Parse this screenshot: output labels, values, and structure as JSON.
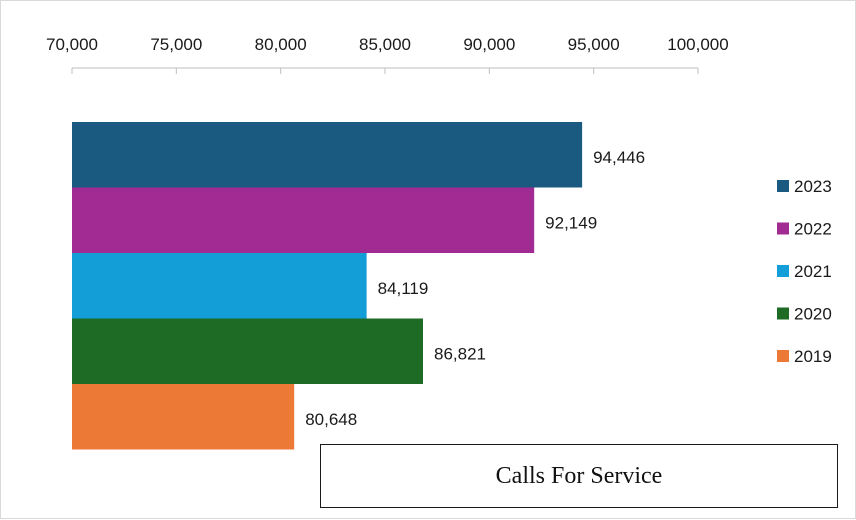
{
  "chart_data": {
    "type": "bar",
    "orientation": "horizontal",
    "title": "Calls For Service",
    "xlim": [
      70000,
      100000
    ],
    "x_ticks": [
      70000,
      75000,
      80000,
      85000,
      90000,
      95000,
      100000
    ],
    "x_tick_labels": [
      "70,000",
      "75,000",
      "80,000",
      "85,000",
      "90,000",
      "95,000",
      "100,000"
    ],
    "x_axis_position": "top",
    "grid": false,
    "legend_position": "right",
    "categories": [
      "2023",
      "2022",
      "2021",
      "2020",
      "2019"
    ],
    "values": [
      94446,
      92149,
      84119,
      86821,
      80648
    ],
    "value_labels": [
      "94,446",
      "92,149",
      "84,119",
      "86,821",
      "80,648"
    ],
    "colors": [
      "#1b5a80",
      "#a12b93",
      "#139ed8",
      "#1d6b25",
      "#ec7935"
    ],
    "legend": [
      {
        "label": "2023",
        "color": "#1b5a80"
      },
      {
        "label": "2022",
        "color": "#a12b93"
      },
      {
        "label": "2021",
        "color": "#139ed8"
      },
      {
        "label": "2020",
        "color": "#1d6b25"
      },
      {
        "label": "2019",
        "color": "#ec7935"
      }
    ]
  }
}
